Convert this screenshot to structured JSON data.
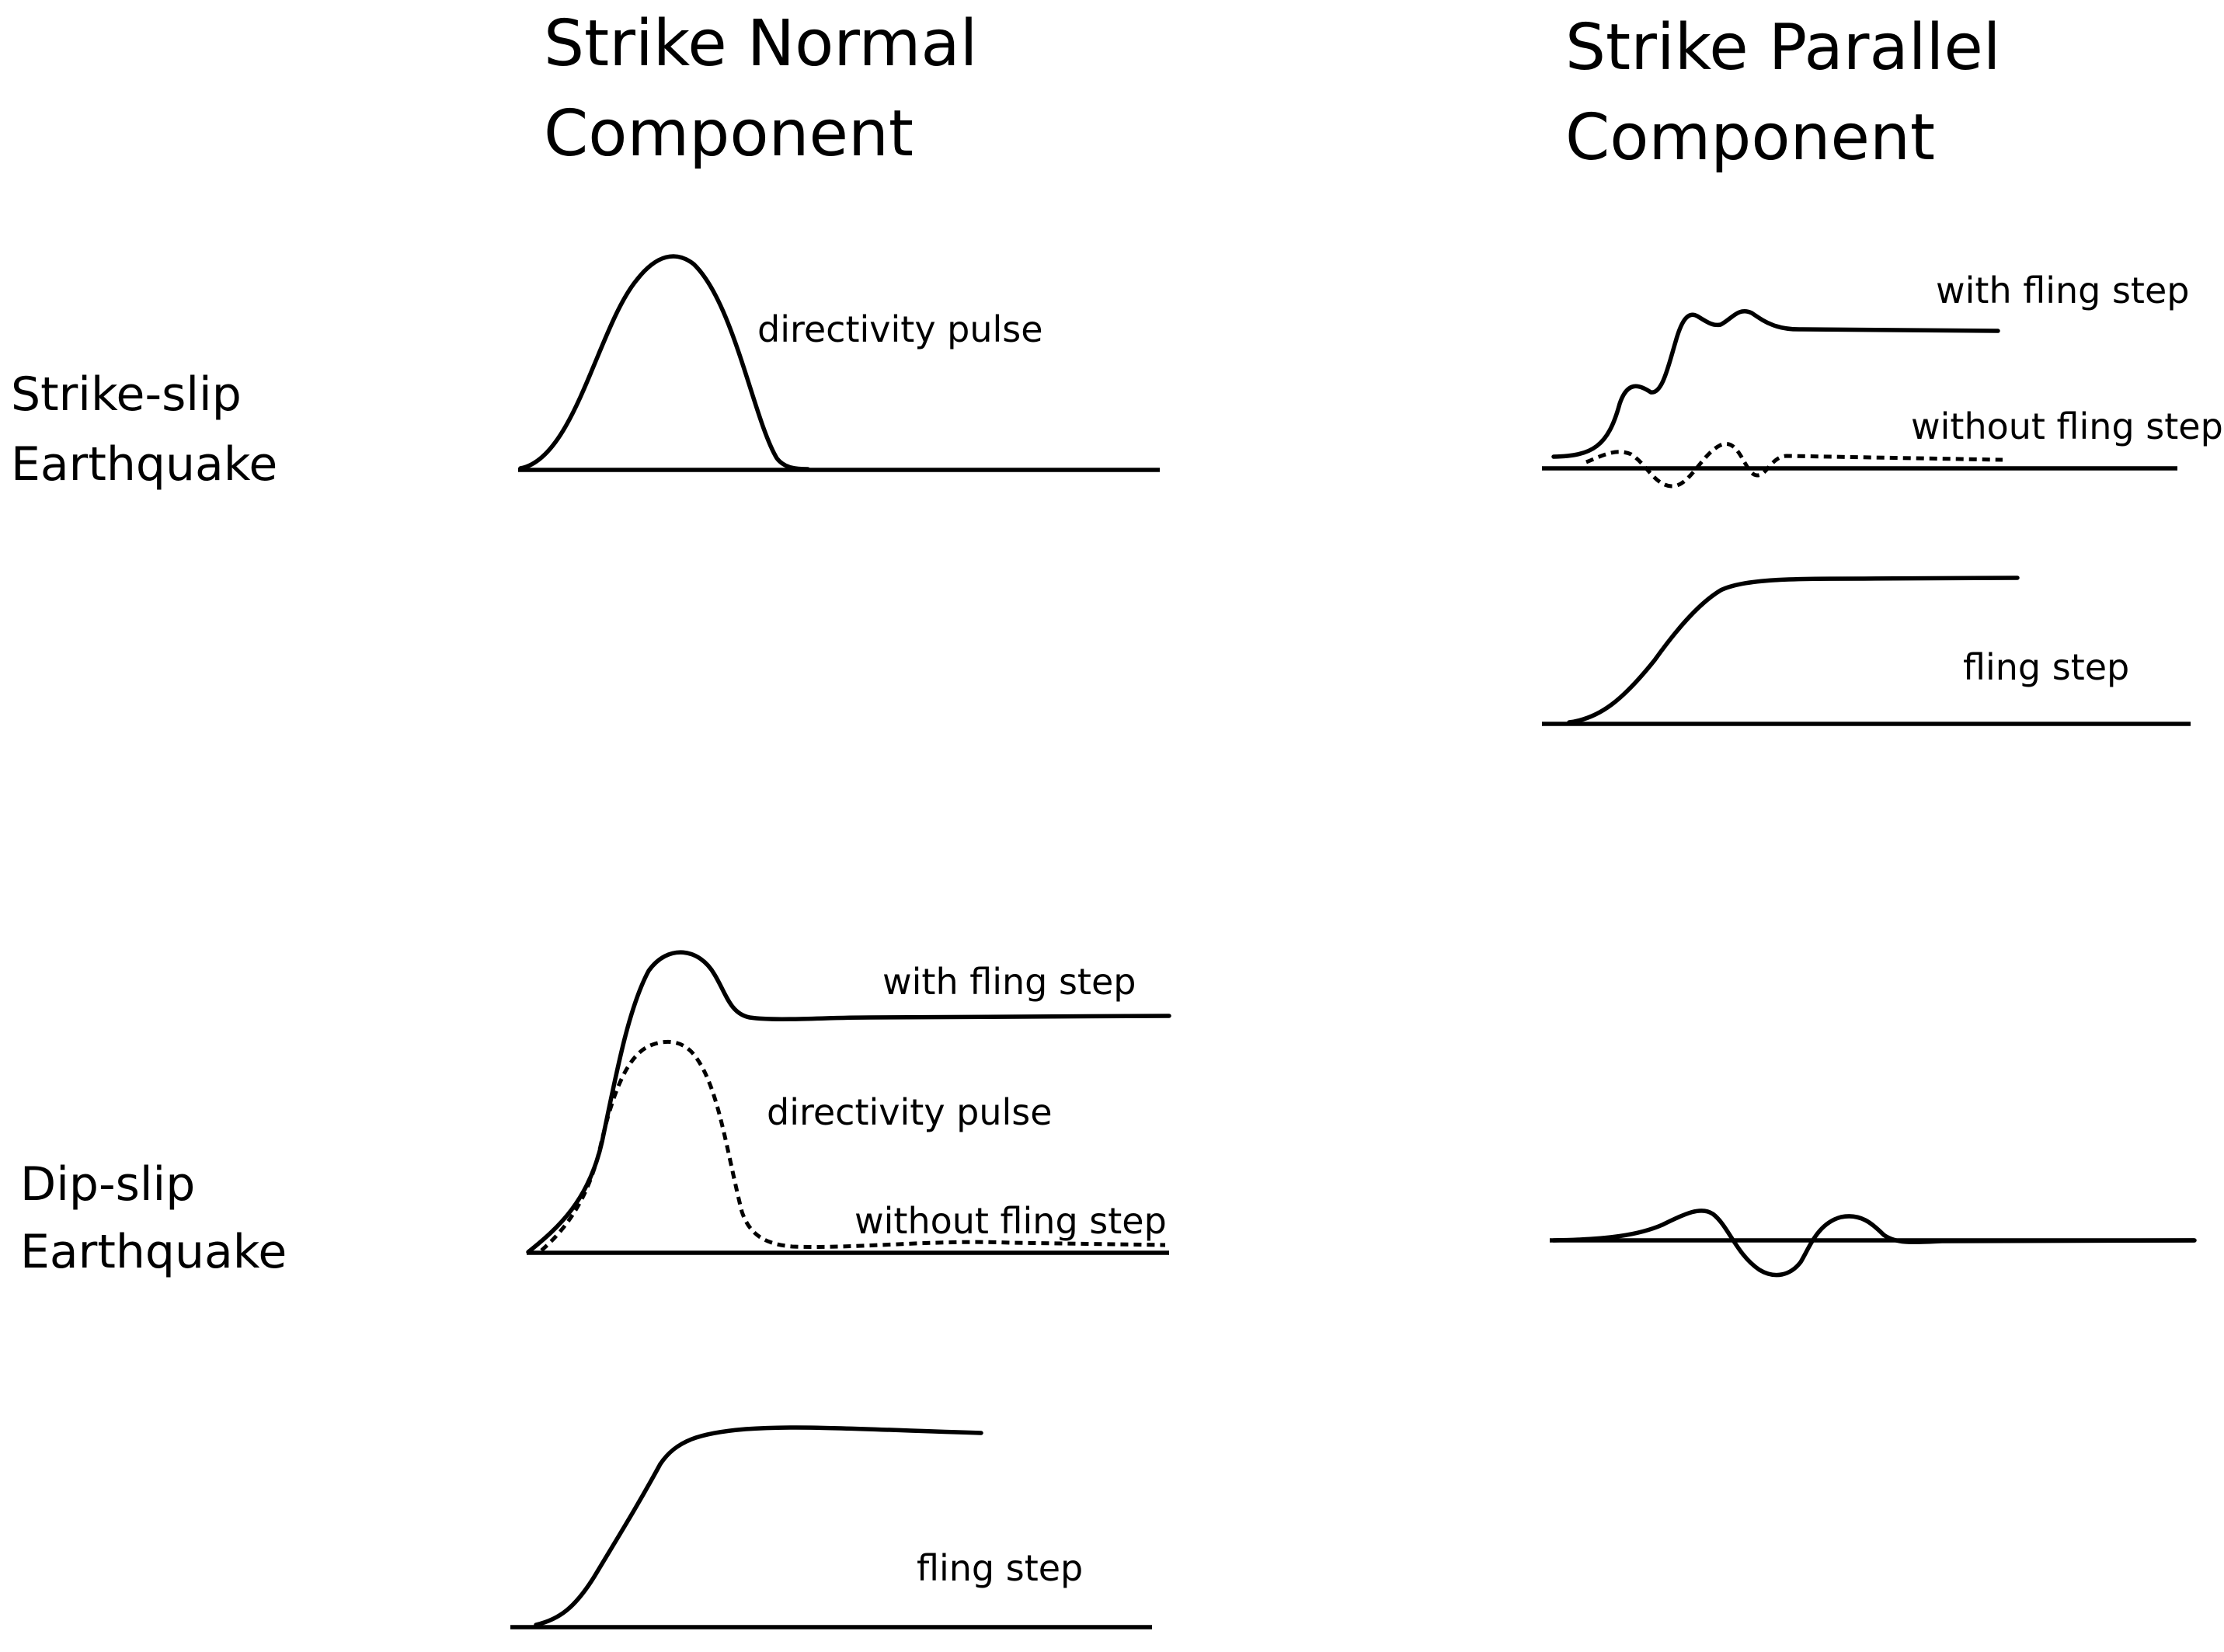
{
  "columns": {
    "normal": {
      "line1": "Strike Normal",
      "line2": "Component"
    },
    "parallel": {
      "line1": "Strike Parallel",
      "line2": "Component"
    }
  },
  "rows": {
    "strike_slip": {
      "line1": "Strike-slip",
      "line2": "Earthquake"
    },
    "dip_slip": {
      "line1": "Dip-slip",
      "line2": "Earthquake"
    }
  },
  "labels": {
    "ss_normal_pulse": "directivity pulse",
    "ss_parallel_with": "with fling step",
    "ss_parallel_without": "without fling step",
    "ss_parallel_fling": "fling step",
    "ds_normal_with": "with fling step",
    "ds_normal_pulse": "directivity pulse",
    "ds_normal_without": "without fling step",
    "ds_normal_fling": "fling step"
  }
}
